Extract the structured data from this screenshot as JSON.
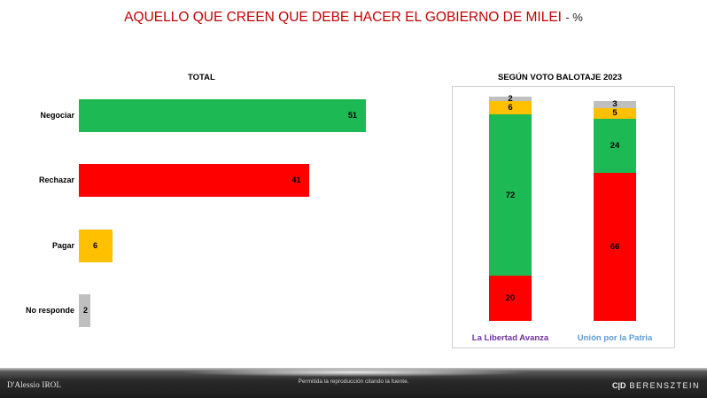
{
  "title": "AQUELLO QUE CREEN QUE DEBE HACER EL GOBIERNO DE MILEI",
  "title_unit": "- %",
  "colors": {
    "negociar": "#1db954",
    "rechazar": "#ff0000",
    "pagar": "#ffc000",
    "no_responde": "#bfbfbf",
    "la_libertad_avanza": "#7030a0",
    "union_por_la_patria": "#5b9bd5"
  },
  "chart_data": [
    {
      "type": "bar",
      "orientation": "horizontal",
      "title": "TOTAL",
      "categories": [
        "Negociar",
        "Rechazar",
        "Pagar",
        "No responde"
      ],
      "values": [
        51,
        41,
        6,
        2
      ],
      "xlim": [
        0,
        100
      ]
    },
    {
      "type": "bar",
      "stacked": true,
      "title": "SEGÚN VOTO BALOTAJE 2023",
      "categories": [
        "La Libertad Avanza",
        "Unión por la Patria"
      ],
      "series": [
        {
          "key": "rechazar",
          "values": [
            20,
            66
          ]
        },
        {
          "key": "negociar",
          "values": [
            72,
            24
          ]
        },
        {
          "key": "pagar",
          "values": [
            6,
            5
          ]
        },
        {
          "key": "no_responde",
          "values": [
            2,
            3
          ]
        }
      ],
      "ylim": [
        0,
        100
      ]
    }
  ],
  "footer": {
    "left_logo": "D'Alessio IROL",
    "note": "Permitida la reproducción citando la fuente.",
    "right_logo": "BERENSZTEIN"
  }
}
